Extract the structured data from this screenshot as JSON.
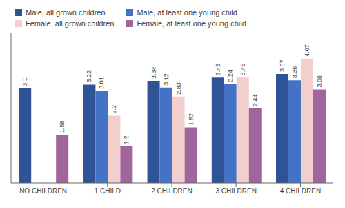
{
  "chart_data": {
    "type": "bar",
    "categories": [
      "NO CHILDREN",
      "1 CHILD",
      "2 CHILDREN",
      "3 CHILDREN",
      "4 CHILDREN"
    ],
    "series": [
      {
        "name": "Male, all grown children",
        "color": "#2F5496",
        "values": [
          3.1,
          3.22,
          3.34,
          3.45,
          3.57
        ]
      },
      {
        "name": "Male, at least one young child",
        "color": "#4472C4",
        "values": [
          null,
          3.01,
          3.12,
          3.24,
          3.36
        ]
      },
      {
        "name": "Female, all grown children",
        "color": "#F2CECD",
        "values": [
          null,
          2.2,
          2.83,
          3.45,
          4.07
        ]
      },
      {
        "name": "Female, at least one young child",
        "color": "#A0659A",
        "values": [
          1.58,
          1.2,
          1.82,
          2.44,
          3.06
        ]
      }
    ],
    "ylim": [
      0,
      4.9
    ],
    "data_labels": true,
    "tick_labels": "x"
  }
}
